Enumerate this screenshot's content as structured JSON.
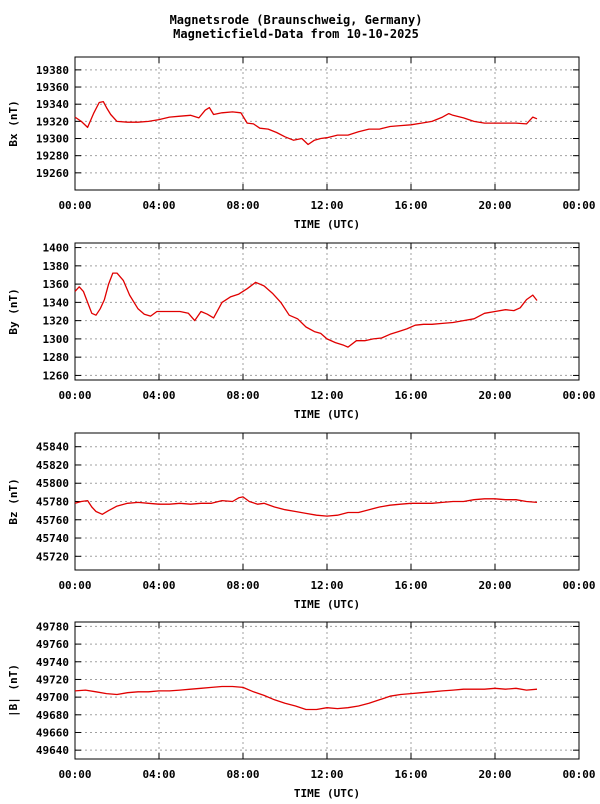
{
  "title": {
    "line1": "Magnetsrode (Braunschweig, Germany)",
    "line2": "Magneticfield-Data from 10-10-2025"
  },
  "colors": {
    "series": "#e00000",
    "grid": "#a0a0a0",
    "axis": "#000000"
  },
  "chart_data": [
    {
      "type": "line",
      "xlabel": "TIME (UTC)",
      "ylabel": "Bx (nT)",
      "xticks": [
        "00:00",
        "04:00",
        "08:00",
        "12:00",
        "16:00",
        "20:00",
        "00:00"
      ],
      "xlim": [
        0,
        24
      ],
      "ylim": [
        19240,
        19395
      ],
      "yticks": [
        19260,
        19280,
        19300,
        19320,
        19340,
        19360,
        19380
      ],
      "grid": true,
      "series": [
        {
          "x": [
            0,
            0.3,
            0.6,
            0.9,
            1.15,
            1.35,
            1.5,
            1.7,
            2.0,
            2.5,
            3.0,
            3.5,
            4.0,
            4.5,
            5.0,
            5.5,
            5.9,
            6.2,
            6.4,
            6.6,
            7.0,
            7.5,
            7.9,
            8.2,
            8.5,
            8.8,
            9.2,
            9.6,
            10.0,
            10.4,
            10.8,
            11.1,
            11.4,
            11.7,
            12.0,
            12.5,
            13.0,
            13.5,
            14.0,
            14.5,
            15.0,
            15.5,
            16.0,
            16.5,
            17.0,
            17.5,
            17.8,
            18.0,
            18.5,
            19.0,
            19.5,
            20.0,
            20.5,
            21.0,
            21.5,
            21.8,
            22.0
          ],
          "y": [
            19325,
            19320,
            19313,
            19330,
            19342,
            19343,
            19336,
            19328,
            19320,
            19319,
            19319,
            19320,
            19322,
            19325,
            19326,
            19327,
            19324,
            19333,
            19336,
            19328,
            19330,
            19331,
            19330,
            19318,
            19317,
            19312,
            19311,
            19307,
            19302,
            19298,
            19300,
            19293,
            19298,
            19300,
            19301,
            19304,
            19304,
            19308,
            19311,
            19311,
            19314,
            19315,
            19316,
            19318,
            19320,
            19325,
            19329,
            19327,
            19324,
            19320,
            19318,
            19318,
            19318,
            19318,
            19317,
            19325,
            19323
          ]
        }
      ]
    },
    {
      "type": "line",
      "xlabel": "TIME (UTC)",
      "ylabel": "By (nT)",
      "xticks": [
        "00:00",
        "04:00",
        "08:00",
        "12:00",
        "16:00",
        "20:00",
        "00:00"
      ],
      "xlim": [
        0,
        24
      ],
      "ylim": [
        1255,
        1405
      ],
      "yticks": [
        1260,
        1280,
        1300,
        1320,
        1340,
        1360,
        1380,
        1400
      ],
      "grid": true,
      "series": [
        {
          "x": [
            0,
            0.2,
            0.4,
            0.6,
            0.8,
            1.0,
            1.2,
            1.4,
            1.6,
            1.8,
            2.0,
            2.3,
            2.6,
            3.0,
            3.3,
            3.6,
            3.9,
            4.2,
            4.6,
            5.0,
            5.4,
            5.7,
            6.0,
            6.3,
            6.6,
            7.0,
            7.4,
            7.8,
            8.2,
            8.6,
            9.0,
            9.4,
            9.8,
            10.2,
            10.6,
            11.0,
            11.4,
            11.7,
            12.0,
            12.4,
            12.8,
            13.0,
            13.4,
            13.8,
            14.2,
            14.6,
            15.0,
            15.4,
            15.8,
            16.2,
            16.6,
            17.0,
            17.5,
            18.0,
            18.5,
            19.0,
            19.5,
            20.0,
            20.5,
            20.9,
            21.2,
            21.5,
            21.8,
            22.0
          ],
          "y": [
            1352,
            1357,
            1352,
            1340,
            1328,
            1326,
            1333,
            1343,
            1360,
            1372,
            1372,
            1364,
            1348,
            1333,
            1327,
            1325,
            1330,
            1330,
            1330,
            1330,
            1328,
            1320,
            1330,
            1327,
            1323,
            1340,
            1346,
            1349,
            1355,
            1362,
            1358,
            1350,
            1340,
            1326,
            1322,
            1313,
            1308,
            1306,
            1300,
            1296,
            1293,
            1291,
            1298,
            1298,
            1300,
            1301,
            1305,
            1308,
            1311,
            1315,
            1316,
            1316,
            1317,
            1318,
            1320,
            1322,
            1328,
            1330,
            1332,
            1331,
            1334,
            1343,
            1348,
            1342
          ]
        }
      ]
    },
    {
      "type": "line",
      "xlabel": "TIME (UTC)",
      "ylabel": "Bz (nT)",
      "xticks": [
        "00:00",
        "04:00",
        "08:00",
        "12:00",
        "16:00",
        "20:00",
        "00:00"
      ],
      "xlim": [
        0,
        24
      ],
      "ylim": [
        45705,
        45855
      ],
      "yticks": [
        45720,
        45740,
        45760,
        45780,
        45800,
        45820,
        45840
      ],
      "grid": true,
      "series": [
        {
          "x": [
            0,
            0.3,
            0.6,
            0.8,
            1.0,
            1.3,
            1.6,
            2.0,
            2.5,
            3.0,
            3.5,
            4.0,
            4.5,
            5.0,
            5.5,
            6.0,
            6.5,
            7.0,
            7.5,
            7.8,
            8.0,
            8.3,
            8.7,
            9.0,
            9.5,
            10.0,
            10.5,
            11.0,
            11.5,
            12.0,
            12.5,
            13.0,
            13.5,
            14.0,
            14.5,
            15.0,
            15.5,
            16.0,
            16.5,
            17.0,
            17.5,
            18.0,
            18.5,
            19.0,
            19.5,
            20.0,
            20.5,
            21.0,
            21.5,
            22.0
          ],
          "y": [
            45778,
            45780,
            45781,
            45774,
            45769,
            45766,
            45770,
            45775,
            45778,
            45779,
            45778,
            45777,
            45777,
            45778,
            45777,
            45778,
            45778,
            45781,
            45780,
            45784,
            45785,
            45780,
            45777,
            45778,
            45774,
            45771,
            45769,
            45767,
            45765,
            45764,
            45765,
            45768,
            45768,
            45771,
            45774,
            45776,
            45777,
            45778,
            45778,
            45778,
            45779,
            45780,
            45780,
            45782,
            45783,
            45783,
            45782,
            45782,
            45780,
            45779
          ]
        }
      ]
    },
    {
      "type": "line",
      "xlabel": "TIME (UTC)",
      "ylabel": "|B| (nT)",
      "xticks": [
        "00:00",
        "04:00",
        "08:00",
        "12:00",
        "16:00",
        "20:00",
        "00:00"
      ],
      "xlim": [
        0,
        24
      ],
      "ylim": [
        49630,
        49785
      ],
      "yticks": [
        49640,
        49660,
        49680,
        49700,
        49720,
        49740,
        49760,
        49780
      ],
      "grid": true,
      "series": [
        {
          "x": [
            0,
            0.5,
            1.0,
            1.5,
            2.0,
            2.5,
            3.0,
            3.5,
            4.0,
            4.5,
            5.0,
            5.5,
            6.0,
            6.5,
            7.0,
            7.5,
            8.0,
            8.5,
            9.0,
            9.5,
            10.0,
            10.5,
            11.0,
            11.5,
            12.0,
            12.5,
            13.0,
            13.5,
            14.0,
            14.5,
            15.0,
            15.5,
            16.0,
            16.5,
            17.0,
            17.5,
            18.0,
            18.5,
            19.0,
            19.5,
            20.0,
            20.5,
            21.0,
            21.5,
            22.0
          ],
          "y": [
            49707,
            49708,
            49706,
            49704,
            49703,
            49705,
            49706,
            49706,
            49707,
            49707,
            49708,
            49709,
            49710,
            49711,
            49712,
            49712,
            49711,
            49706,
            49702,
            49697,
            49693,
            49690,
            49686,
            49686,
            49688,
            49687,
            49688,
            49690,
            49693,
            49697,
            49701,
            49703,
            49704,
            49705,
            49706,
            49707,
            49708,
            49709,
            49709,
            49709,
            49710,
            49709,
            49710,
            49708,
            49709
          ]
        }
      ]
    }
  ]
}
